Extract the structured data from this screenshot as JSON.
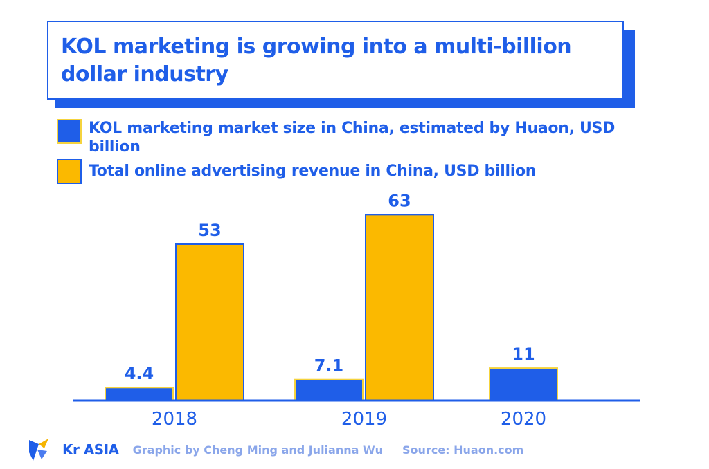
{
  "title": "KOL marketing is growing into a multi-billion dollar industry",
  "colors": {
    "blue": "#1f5ee8",
    "yellow": "#fbb900",
    "outline_yellow": "#f5d33d"
  },
  "chart_data": {
    "type": "bar",
    "title": "KOL marketing is growing into a multi-billion dollar industry",
    "categories": [
      "2018",
      "2019",
      "2020"
    ],
    "series": [
      {
        "name": "KOL marketing market size in China, estimated by Huaon, USD billion",
        "values": [
          4.4,
          7.1,
          11
        ],
        "labels": [
          "4.4",
          "7.1",
          "11"
        ],
        "color": "#1f5ee8"
      },
      {
        "name": "Total online advertising revenue in China, USD billion",
        "values": [
          53,
          63,
          null
        ],
        "labels": [
          "53",
          "63",
          ""
        ],
        "color": "#fbb900"
      }
    ],
    "legend_position": "top-left",
    "grid": false,
    "ylim": [
      0,
      63
    ]
  },
  "footer": {
    "brand": "Kr ASIA",
    "credit": "Graphic by Cheng Ming and Julianna Wu",
    "source": "Source:  Huaon.com"
  },
  "watermark": "KrASIA"
}
